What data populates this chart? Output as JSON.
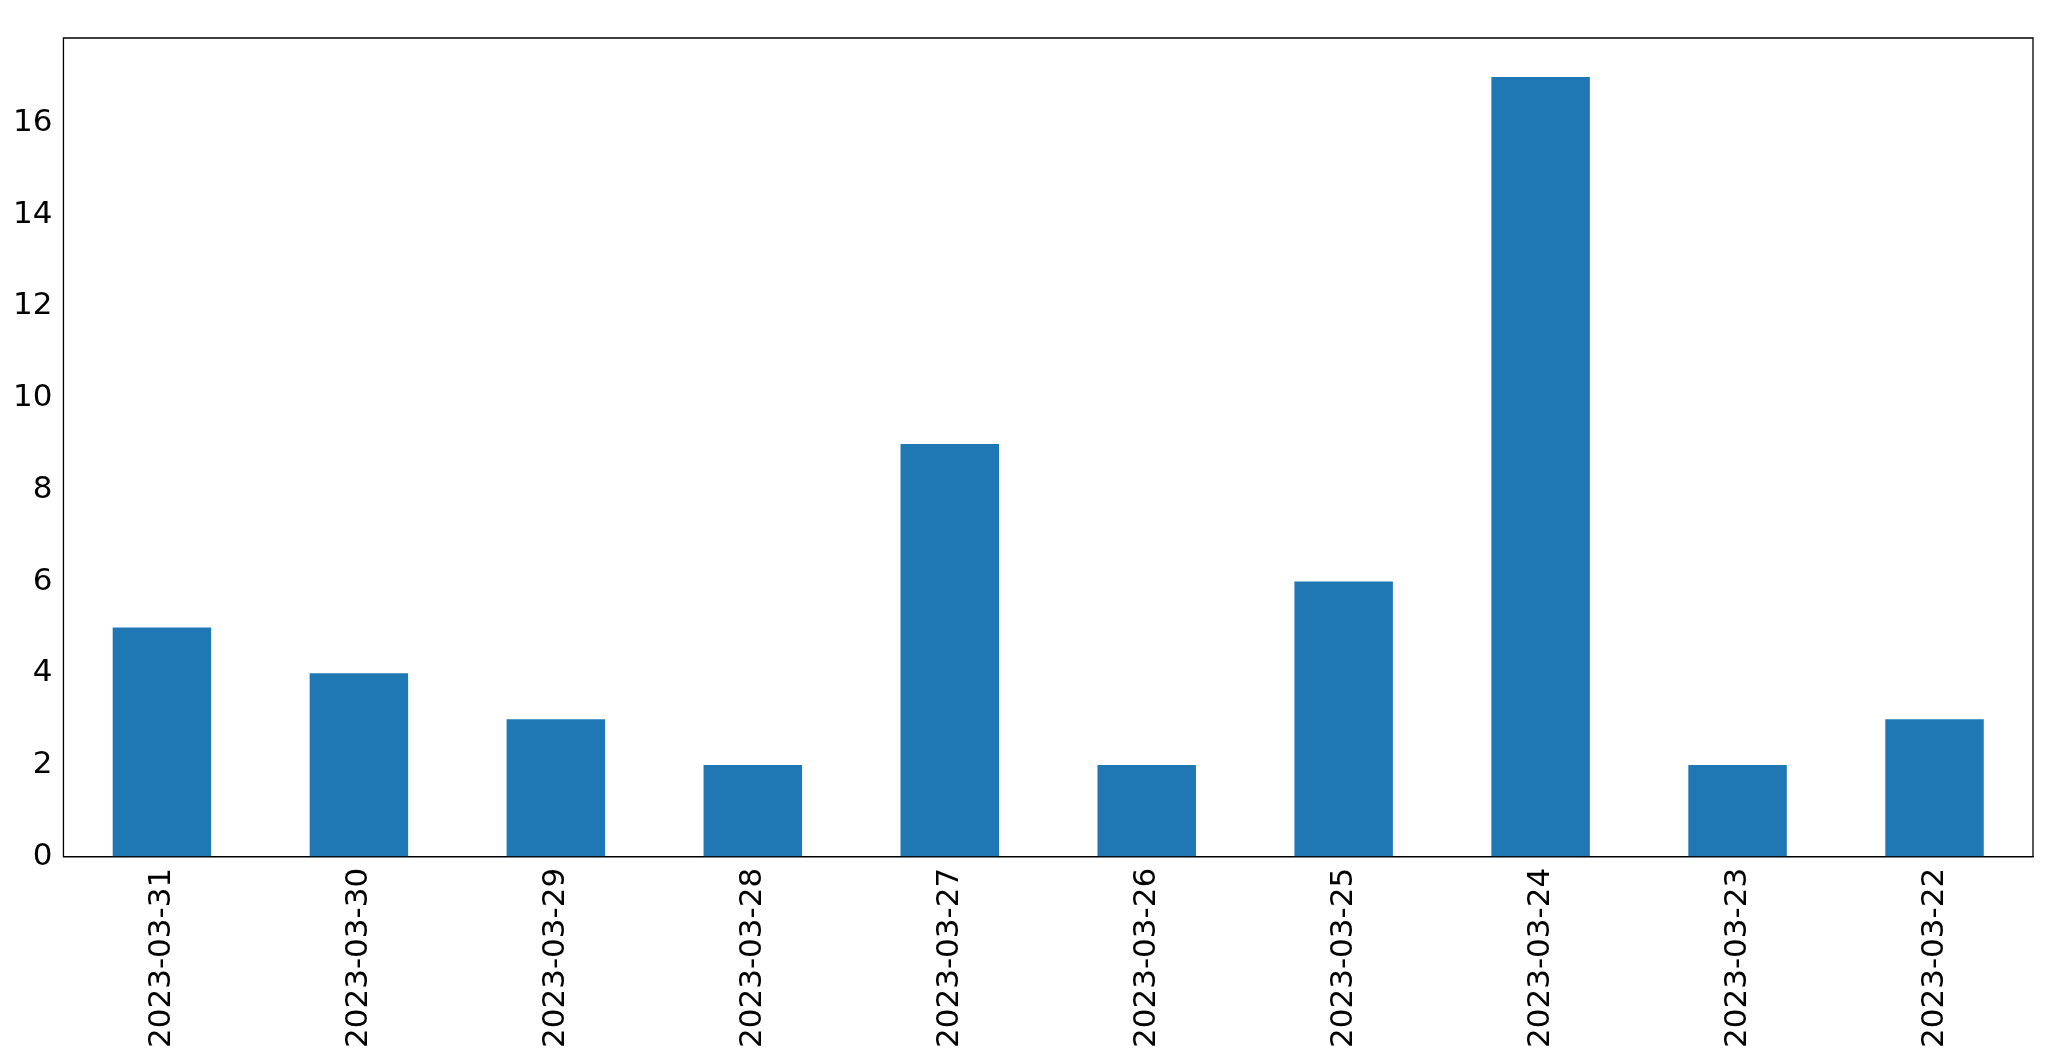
{
  "chart_data": {
    "type": "bar",
    "categories": [
      "2023-03-31",
      "2023-03-30",
      "2023-03-29",
      "2023-03-28",
      "2023-03-27",
      "2023-03-26",
      "2023-03-25",
      "2023-03-24",
      "2023-03-23",
      "2023-03-22"
    ],
    "values": [
      5,
      4,
      3,
      2,
      9,
      2,
      6,
      17,
      2,
      3
    ],
    "color": "#1f77b4",
    "ylim": [
      0,
      17.85
    ],
    "yticks": [
      0,
      2,
      4,
      6,
      8,
      10,
      12,
      14,
      16
    ]
  }
}
